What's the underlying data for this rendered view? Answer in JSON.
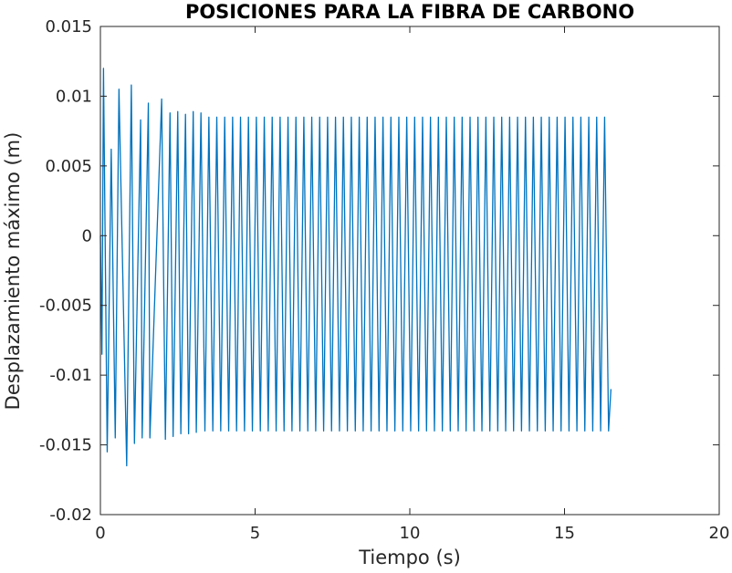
{
  "chart_data": {
    "type": "line",
    "title": "POSICIONES PARA LA FIBRA DE CARBONO",
    "xlabel": "Tiempo (s)",
    "ylabel": "Desplazamiento máximo (m)",
    "xlim": [
      0,
      20
    ],
    "ylim": [
      -0.02,
      0.015
    ],
    "xticks": [
      0,
      5,
      10,
      15,
      20
    ],
    "xtick_labels": [
      "0",
      "5",
      "10",
      "15",
      "20"
    ],
    "yticks": [
      -0.02,
      -0.015,
      -0.01,
      -0.005,
      0,
      0.005,
      0.01,
      0.015
    ],
    "ytick_labels": [
      "-0.02",
      "-0.015",
      "-0.01",
      "-0.005",
      "0",
      "0.005",
      "0.01",
      "0.015"
    ],
    "grid": false,
    "box": true,
    "series_color": "#0072bd",
    "series": [
      {
        "x_start": 0,
        "x_end": 16.5,
        "period_s": 0.2558,
        "steady_max": 0.0085,
        "steady_min": -0.014,
        "peaks": [
          [
            0.1,
            0.012
          ],
          [
            0.35,
            0.0062
          ],
          [
            0.6,
            0.0105
          ],
          [
            1.0,
            0.0108
          ],
          [
            1.3,
            0.0083
          ],
          [
            1.55,
            0.0095
          ],
          [
            1.98,
            0.0098
          ],
          [
            2.25,
            0.0088
          ],
          [
            2.5,
            0.0089
          ],
          [
            2.75,
            0.0087
          ],
          [
            3.0,
            0.0089
          ],
          [
            3.25,
            0.0088
          ]
        ],
        "troughs": [
          [
            0.05,
            -0.0085
          ],
          [
            0.22,
            -0.0155
          ],
          [
            0.48,
            -0.0145
          ],
          [
            0.85,
            -0.0165
          ],
          [
            1.1,
            -0.0149
          ],
          [
            1.35,
            -0.0145
          ],
          [
            1.6,
            -0.0145
          ],
          [
            2.1,
            -0.0146
          ],
          [
            2.35,
            -0.0144
          ],
          [
            2.6,
            -0.0142
          ],
          [
            2.85,
            -0.0142
          ],
          [
            3.1,
            -0.0141
          ]
        ],
        "x_last": 16.5,
        "y_last": -0.011
      }
    ]
  }
}
